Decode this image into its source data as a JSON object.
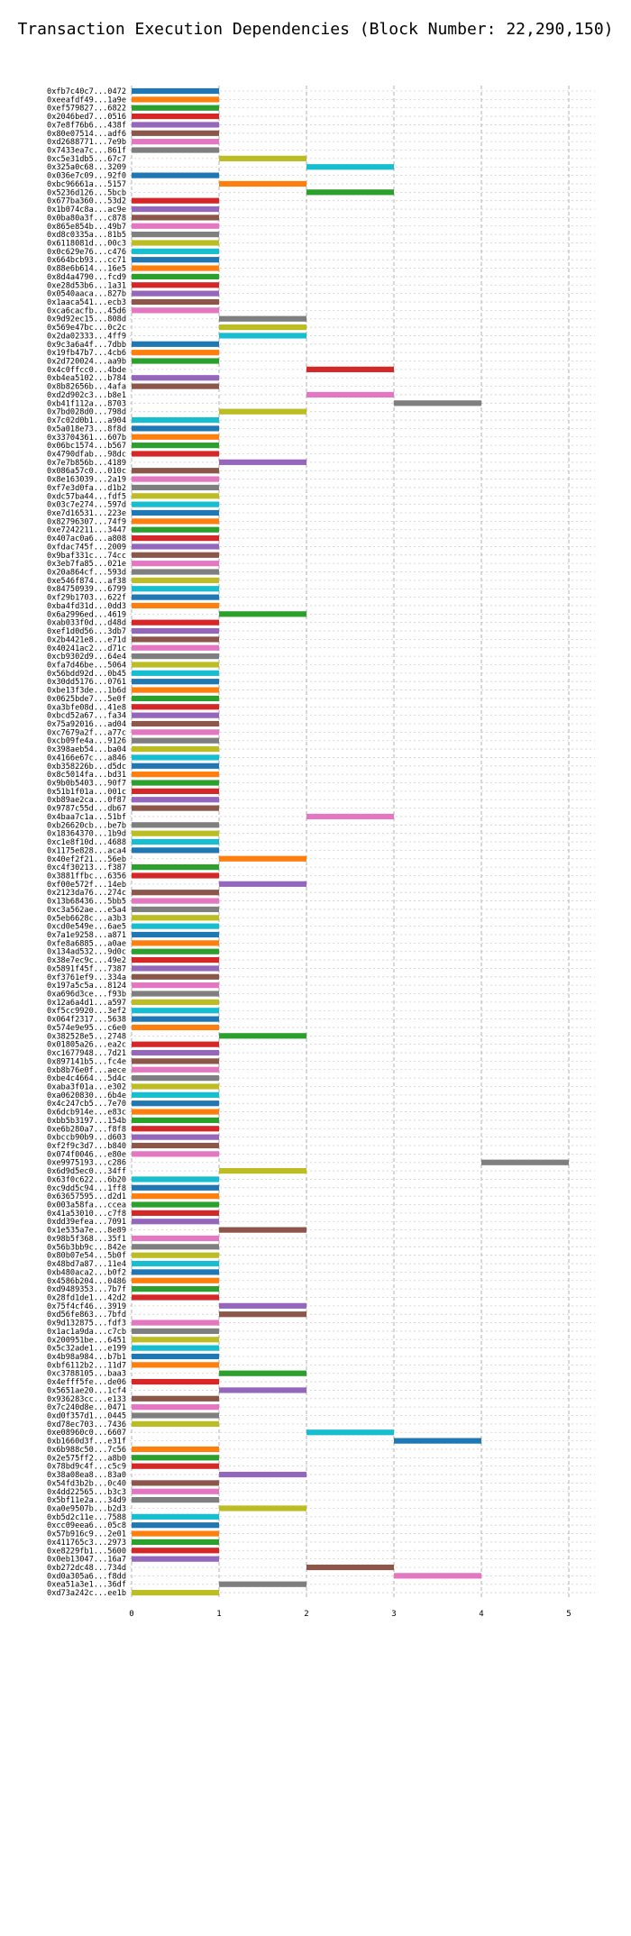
{
  "chart_data": {
    "type": "bar",
    "title": "Transaction Execution Dependencies (Block Number: 22,290,150)",
    "xlabel": "",
    "ylabel": "",
    "xlim": [
      0,
      5
    ],
    "x_ticks": [
      "0",
      "1",
      "2",
      "3",
      "4",
      "5"
    ],
    "grid": true,
    "palette": [
      "#1f77b4",
      "#ff7f0e",
      "#2ca02c",
      "#d62728",
      "#9467bd",
      "#8c564b",
      "#e377c2",
      "#7f7f7f",
      "#bcbd22",
      "#17becf"
    ],
    "transactions": [
      {
        "label": "0xfb7c40c7...0472",
        "start": 0,
        "end": 1
      },
      {
        "label": "0xeeafdf49...1a9e",
        "start": 0,
        "end": 1
      },
      {
        "label": "0xef579827...6822",
        "start": 0,
        "end": 1
      },
      {
        "label": "0x2046bed7...0516",
        "start": 0,
        "end": 1
      },
      {
        "label": "0x7e8f76b6...438f",
        "start": 0,
        "end": 1
      },
      {
        "label": "0x80e07514...adf6",
        "start": 0,
        "end": 1
      },
      {
        "label": "0xd2688771...7e9b",
        "start": 0,
        "end": 1
      },
      {
        "label": "0x7433ea7c...861f",
        "start": 0,
        "end": 1
      },
      {
        "label": "0xc5e31db5...67c7",
        "start": 1,
        "end": 2
      },
      {
        "label": "0x325a0c68...3209",
        "start": 2,
        "end": 3
      },
      {
        "label": "0x036e7c09...92f0",
        "start": 0,
        "end": 1
      },
      {
        "label": "0xbc96661a...5157",
        "start": 1,
        "end": 2
      },
      {
        "label": "0x5236d126...5bcb",
        "start": 2,
        "end": 3
      },
      {
        "label": "0x677ba360...53d2",
        "start": 0,
        "end": 1
      },
      {
        "label": "0x1b074c8a...ac9e",
        "start": 0,
        "end": 1
      },
      {
        "label": "0x0ba80a3f...c878",
        "start": 0,
        "end": 1
      },
      {
        "label": "0x865e854b...49b7",
        "start": 0,
        "end": 1
      },
      {
        "label": "0xd8c0335a...81b5",
        "start": 0,
        "end": 1
      },
      {
        "label": "0x6118081d...00c3",
        "start": 0,
        "end": 1
      },
      {
        "label": "0x0c629e76...c476",
        "start": 0,
        "end": 1
      },
      {
        "label": "0x664bcb93...cc71",
        "start": 0,
        "end": 1
      },
      {
        "label": "0x88e6b614...16e5",
        "start": 0,
        "end": 1
      },
      {
        "label": "0x8d4a4790...fcd9",
        "start": 0,
        "end": 1
      },
      {
        "label": "0xe28d53b6...1a31",
        "start": 0,
        "end": 1
      },
      {
        "label": "0x0540aaca...827b",
        "start": 0,
        "end": 1
      },
      {
        "label": "0x1aaca541...ecb3",
        "start": 0,
        "end": 1
      },
      {
        "label": "0xca6cacfb...45d6",
        "start": 0,
        "end": 1
      },
      {
        "label": "0x9d92ec15...808d",
        "start": 1,
        "end": 2
      },
      {
        "label": "0x569e47bc...0c2c",
        "start": 1,
        "end": 2
      },
      {
        "label": "0x2da02333...4ff9",
        "start": 1,
        "end": 2
      },
      {
        "label": "0x9c3a6a4f...7dbb",
        "start": 0,
        "end": 1
      },
      {
        "label": "0x19fb47b7...4cb6",
        "start": 0,
        "end": 1
      },
      {
        "label": "0x2d720024...aa9b",
        "start": 0,
        "end": 1
      },
      {
        "label": "0x4c0ffcc0...4bde",
        "start": 2,
        "end": 3
      },
      {
        "label": "0xb4ea5102...b784",
        "start": 0,
        "end": 1
      },
      {
        "label": "0x8b82656b...4afa",
        "start": 0,
        "end": 1
      },
      {
        "label": "0xd2d902c3...b8e1",
        "start": 2,
        "end": 3
      },
      {
        "label": "0xb41f112a...8703",
        "start": 3,
        "end": 4
      },
      {
        "label": "0x7bd028d0...798d",
        "start": 1,
        "end": 2
      },
      {
        "label": "0x7c02d0b1...a904",
        "start": 0,
        "end": 1
      },
      {
        "label": "0x5a018e73...8f8d",
        "start": 0,
        "end": 1
      },
      {
        "label": "0x33704361...607b",
        "start": 0,
        "end": 1
      },
      {
        "label": "0x06bc1574...b567",
        "start": 0,
        "end": 1
      },
      {
        "label": "0x4790dfab...98dc",
        "start": 0,
        "end": 1
      },
      {
        "label": "0x7e7b856b...4189",
        "start": 1,
        "end": 2
      },
      {
        "label": "0x086a57c0...010c",
        "start": 0,
        "end": 1
      },
      {
        "label": "0x8e163039...2a19",
        "start": 0,
        "end": 1
      },
      {
        "label": "0xf7e3d0fa...d1b2",
        "start": 0,
        "end": 1
      },
      {
        "label": "0xdc57ba44...fdf5",
        "start": 0,
        "end": 1
      },
      {
        "label": "0x03c7e274...597d",
        "start": 0,
        "end": 1
      },
      {
        "label": "0xe7d16531...223e",
        "start": 0,
        "end": 1
      },
      {
        "label": "0x82796307...74f9",
        "start": 0,
        "end": 1
      },
      {
        "label": "0xe7242211...3447",
        "start": 0,
        "end": 1
      },
      {
        "label": "0x407ac0a6...a808",
        "start": 0,
        "end": 1
      },
      {
        "label": "0xfdac745f...2009",
        "start": 0,
        "end": 1
      },
      {
        "label": "0x9baf331c...74cc",
        "start": 0,
        "end": 1
      },
      {
        "label": "0x3eb7fa85...021e",
        "start": 0,
        "end": 1
      },
      {
        "label": "0x20a864cf...593d",
        "start": 0,
        "end": 1
      },
      {
        "label": "0xe546f874...af38",
        "start": 0,
        "end": 1
      },
      {
        "label": "0x84750939...6799",
        "start": 0,
        "end": 1
      },
      {
        "label": "0xf29b1703...622f",
        "start": 0,
        "end": 1
      },
      {
        "label": "0xba4fd31d...0dd3",
        "start": 0,
        "end": 1
      },
      {
        "label": "0x6a2996ed...4619",
        "start": 1,
        "end": 2
      },
      {
        "label": "0xab033f0d...d48d",
        "start": 0,
        "end": 1
      },
      {
        "label": "0xef1d0d56...3db7",
        "start": 0,
        "end": 1
      },
      {
        "label": "0x2b4421e8...e71d",
        "start": 0,
        "end": 1
      },
      {
        "label": "0x40241ac2...d71c",
        "start": 0,
        "end": 1
      },
      {
        "label": "0xcb9302d9...64e4",
        "start": 0,
        "end": 1
      },
      {
        "label": "0xfa7d46be...5064",
        "start": 0,
        "end": 1
      },
      {
        "label": "0x56bdd92d...0b45",
        "start": 0,
        "end": 1
      },
      {
        "label": "0x30dd5176...0761",
        "start": 0,
        "end": 1
      },
      {
        "label": "0xbe13f3de...1b6d",
        "start": 0,
        "end": 1
      },
      {
        "label": "0x0625bde7...5e0f",
        "start": 0,
        "end": 1
      },
      {
        "label": "0xa3bfe08d...41e8",
        "start": 0,
        "end": 1
      },
      {
        "label": "0xbcd52a67...fa34",
        "start": 0,
        "end": 1
      },
      {
        "label": "0x75a92016...ad04",
        "start": 0,
        "end": 1
      },
      {
        "label": "0xc7679a2f...a77c",
        "start": 0,
        "end": 1
      },
      {
        "label": "0xcb09fe4a...9126",
        "start": 0,
        "end": 1
      },
      {
        "label": "0x398aeb54...ba04",
        "start": 0,
        "end": 1
      },
      {
        "label": "0x4166e67c...a846",
        "start": 0,
        "end": 1
      },
      {
        "label": "0xb358226b...d5dc",
        "start": 0,
        "end": 1
      },
      {
        "label": "0x8c5014fa...bd31",
        "start": 0,
        "end": 1
      },
      {
        "label": "0x9b0b5403...90f7",
        "start": 0,
        "end": 1
      },
      {
        "label": "0x51b1f01a...001c",
        "start": 0,
        "end": 1
      },
      {
        "label": "0xb89ae2ca...0f87",
        "start": 0,
        "end": 1
      },
      {
        "label": "0x9787c55d...db67",
        "start": 0,
        "end": 1
      },
      {
        "label": "0x4baa7c1a...51bf",
        "start": 2,
        "end": 3
      },
      {
        "label": "0xb26620cb...be7b",
        "start": 0,
        "end": 1
      },
      {
        "label": "0x18364370...1b9d",
        "start": 0,
        "end": 1
      },
      {
        "label": "0xc1e8f10d...4688",
        "start": 0,
        "end": 1
      },
      {
        "label": "0x1175e828...aca4",
        "start": 0,
        "end": 1
      },
      {
        "label": "0x40ef2f21...56eb",
        "start": 1,
        "end": 2
      },
      {
        "label": "0xc4f30213...f387",
        "start": 0,
        "end": 1
      },
      {
        "label": "0x3881ffbc...6356",
        "start": 0,
        "end": 1
      },
      {
        "label": "0xf00e572f...14eb",
        "start": 1,
        "end": 2
      },
      {
        "label": "0x2123da76...274c",
        "start": 0,
        "end": 1
      },
      {
        "label": "0x13b68436...5bb5",
        "start": 0,
        "end": 1
      },
      {
        "label": "0xc3a562ae...e5a4",
        "start": 0,
        "end": 1
      },
      {
        "label": "0x5eb6628c...a3b3",
        "start": 0,
        "end": 1
      },
      {
        "label": "0xcd0e549e...6ae5",
        "start": 0,
        "end": 1
      },
      {
        "label": "0x7a1e9258...a871",
        "start": 0,
        "end": 1
      },
      {
        "label": "0xfe8a6885...a0ae",
        "start": 0,
        "end": 1
      },
      {
        "label": "0x134ad532...9d0c",
        "start": 0,
        "end": 1
      },
      {
        "label": "0x38e7ec9c...49e2",
        "start": 0,
        "end": 1
      },
      {
        "label": "0x5891f45f...7387",
        "start": 0,
        "end": 1
      },
      {
        "label": "0xf3761ef9...334a",
        "start": 0,
        "end": 1
      },
      {
        "label": "0x197a5c5a...8124",
        "start": 0,
        "end": 1
      },
      {
        "label": "0xa696d3ce...f93b",
        "start": 0,
        "end": 1
      },
      {
        "label": "0x12a6a4d1...a597",
        "start": 0,
        "end": 1
      },
      {
        "label": "0xf5cc9920...3ef2",
        "start": 0,
        "end": 1
      },
      {
        "label": "0x064f2317...5638",
        "start": 0,
        "end": 1
      },
      {
        "label": "0x574e9e95...c6e0",
        "start": 0,
        "end": 1
      },
      {
        "label": "0x382528e5...2748",
        "start": 1,
        "end": 2
      },
      {
        "label": "0x01805a26...ea2c",
        "start": 0,
        "end": 1
      },
      {
        "label": "0xc1677948...7d21",
        "start": 0,
        "end": 1
      },
      {
        "label": "0x897141b5...fc4e",
        "start": 0,
        "end": 1
      },
      {
        "label": "0xb8b76e0f...aece",
        "start": 0,
        "end": 1
      },
      {
        "label": "0xbe4c4664...5d4c",
        "start": 0,
        "end": 1
      },
      {
        "label": "0xaba3f01a...e302",
        "start": 0,
        "end": 1
      },
      {
        "label": "0xa0620830...6b4e",
        "start": 0,
        "end": 1
      },
      {
        "label": "0x4c247cb5...7e70",
        "start": 0,
        "end": 1
      },
      {
        "label": "0x6dcb914e...e83c",
        "start": 0,
        "end": 1
      },
      {
        "label": "0xbb5b3197...154b",
        "start": 0,
        "end": 1
      },
      {
        "label": "0xe6b280a7...f8f8",
        "start": 0,
        "end": 1
      },
      {
        "label": "0xbccb90b9...d603",
        "start": 0,
        "end": 1
      },
      {
        "label": "0xf2f9c3d7...b840",
        "start": 0,
        "end": 1
      },
      {
        "label": "0x074f0046...e80e",
        "start": 0,
        "end": 1
      },
      {
        "label": "0xe9975193...c286",
        "start": 4,
        "end": 5
      },
      {
        "label": "0x6d9d5ec0...34ff",
        "start": 1,
        "end": 2
      },
      {
        "label": "0x63f0c622...6b20",
        "start": 0,
        "end": 1
      },
      {
        "label": "0xc9dd5c94...1ff8",
        "start": 0,
        "end": 1
      },
      {
        "label": "0x63657595...d2d1",
        "start": 0,
        "end": 1
      },
      {
        "label": "0x003a58fa...ccea",
        "start": 0,
        "end": 1
      },
      {
        "label": "0x41a53010...c7f8",
        "start": 0,
        "end": 1
      },
      {
        "label": "0xdd39efea...7091",
        "start": 0,
        "end": 1
      },
      {
        "label": "0x1e535a7e...8e89",
        "start": 1,
        "end": 2
      },
      {
        "label": "0x98b5f368...35f1",
        "start": 0,
        "end": 1
      },
      {
        "label": "0x56b3bb9c...842e",
        "start": 0,
        "end": 1
      },
      {
        "label": "0x80b07e54...5b0f",
        "start": 0,
        "end": 1
      },
      {
        "label": "0x48bd7a87...11e4",
        "start": 0,
        "end": 1
      },
      {
        "label": "0xb480aca2...b0f2",
        "start": 0,
        "end": 1
      },
      {
        "label": "0x4586b204...0486",
        "start": 0,
        "end": 1
      },
      {
        "label": "0xd9489353...7b7f",
        "start": 0,
        "end": 1
      },
      {
        "label": "0x28fd1de1...42d2",
        "start": 0,
        "end": 1
      },
      {
        "label": "0x75f4cf46...3919",
        "start": 1,
        "end": 2
      },
      {
        "label": "0xd56fe863...7bfd",
        "start": 1,
        "end": 2
      },
      {
        "label": "0x9d132875...fdf3",
        "start": 0,
        "end": 1
      },
      {
        "label": "0x1ac1a9da...c7cb",
        "start": 0,
        "end": 1
      },
      {
        "label": "0x200951be...6451",
        "start": 0,
        "end": 1
      },
      {
        "label": "0x5c32ade1...e199",
        "start": 0,
        "end": 1
      },
      {
        "label": "0x4b98a984...b7b1",
        "start": 0,
        "end": 1
      },
      {
        "label": "0xbf6112b2...11d7",
        "start": 0,
        "end": 1
      },
      {
        "label": "0xc3788105...baa3",
        "start": 1,
        "end": 2
      },
      {
        "label": "0x4efff5fe...de06",
        "start": 0,
        "end": 1
      },
      {
        "label": "0x5651ae20...1cf4",
        "start": 1,
        "end": 2
      },
      {
        "label": "0x936283cc...e133",
        "start": 0,
        "end": 1
      },
      {
        "label": "0x7c240d8e...0471",
        "start": 0,
        "end": 1
      },
      {
        "label": "0xd0f357d1...0445",
        "start": 0,
        "end": 1
      },
      {
        "label": "0xd78ec703...7436",
        "start": 0,
        "end": 1
      },
      {
        "label": "0xe08960c0...6607",
        "start": 2,
        "end": 3
      },
      {
        "label": "0xb1660d3f...e31f",
        "start": 3,
        "end": 4
      },
      {
        "label": "0x6b988c50...7c56",
        "start": 0,
        "end": 1
      },
      {
        "label": "0x2e575ff2...a8b0",
        "start": 0,
        "end": 1
      },
      {
        "label": "0x78bd9c4f...c5c9",
        "start": 0,
        "end": 1
      },
      {
        "label": "0x38a08ea8...83a0",
        "start": 1,
        "end": 2
      },
      {
        "label": "0x54fd3b2b...0c40",
        "start": 0,
        "end": 1
      },
      {
        "label": "0x4dd22565...b3c3",
        "start": 0,
        "end": 1
      },
      {
        "label": "0x5bf11e2a...34d9",
        "start": 0,
        "end": 1
      },
      {
        "label": "0xa0e9507b...b2d3",
        "start": 1,
        "end": 2
      },
      {
        "label": "0xb5d2c11e...7588",
        "start": 0,
        "end": 1
      },
      {
        "label": "0xcc09eea6...05c8",
        "start": 0,
        "end": 1
      },
      {
        "label": "0x57b916c9...2e01",
        "start": 0,
        "end": 1
      },
      {
        "label": "0x411765c3...2973",
        "start": 0,
        "end": 1
      },
      {
        "label": "0xe8229fb1...5600",
        "start": 0,
        "end": 1
      },
      {
        "label": "0x0eb13047...16a7",
        "start": 0,
        "end": 1
      },
      {
        "label": "0xb272dc48...734d",
        "start": 2,
        "end": 3
      },
      {
        "label": "0xd0a305a6...f8dd",
        "start": 3,
        "end": 4
      },
      {
        "label": "0xea51a3e1...36df",
        "start": 1,
        "end": 2
      },
      {
        "label": "0xd73a242c...ee1b",
        "start": 0,
        "end": 1
      }
    ]
  }
}
